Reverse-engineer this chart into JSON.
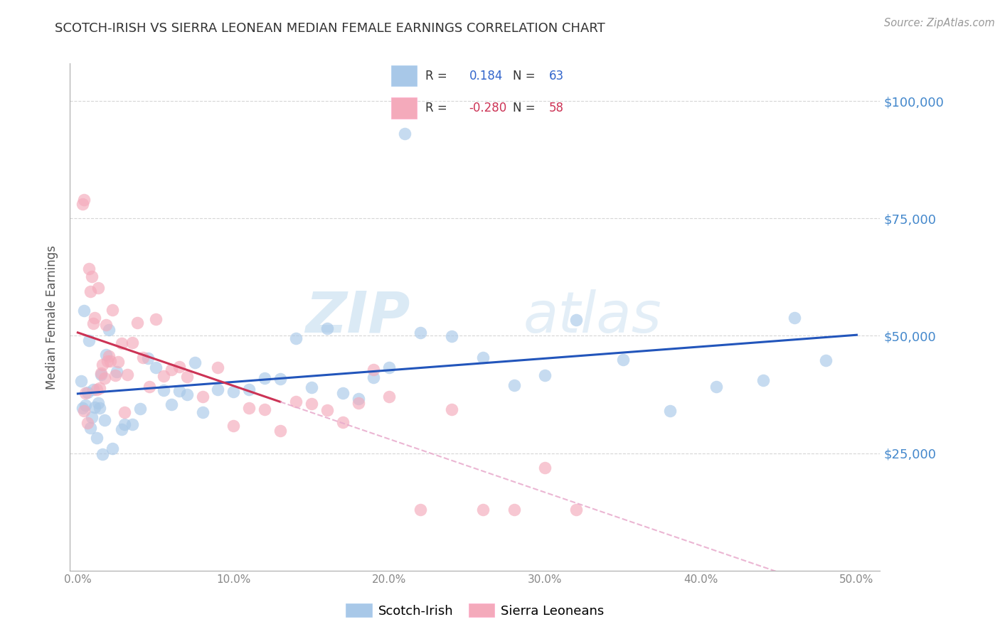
{
  "title": "SCOTCH-IRISH VS SIERRA LEONEAN MEDIAN FEMALE EARNINGS CORRELATION CHART",
  "source": "Source: ZipAtlas.com",
  "ylabel": "Median Female Earnings",
  "R1": "0.184",
  "N1": "63",
  "R2": "-0.280",
  "N2": "58",
  "blue_scatter": "#A8C8E8",
  "pink_scatter": "#F4AABB",
  "line_blue": "#2255BB",
  "line_pink": "#CC3355",
  "line_pink_dashed_color": "#E8AACC",
  "legend1_label": "Scotch-Irish",
  "legend2_label": "Sierra Leoneans",
  "ytick_labels": [
    "$25,000",
    "$50,000",
    "$75,000",
    "$100,000"
  ],
  "ytick_vals": [
    25000,
    50000,
    75000,
    100000
  ],
  "xtick_labels": [
    "0.0%",
    "10.0%",
    "20.0%",
    "30.0%",
    "40.0%",
    "50.0%"
  ],
  "xtick_vals": [
    0.0,
    0.1,
    0.2,
    0.3,
    0.4,
    0.5
  ],
  "xlim": [
    -0.005,
    0.515
  ],
  "ylim": [
    0,
    108000
  ],
  "grid_color": "#CCCCCC",
  "axis_color": "#AAAAAA",
  "title_color": "#333333",
  "source_color": "#999999",
  "ylabel_color": "#555555",
  "tick_color": "#888888",
  "right_tick_color": "#4488CC",
  "legend_R_color_blue": "#3366CC",
  "legend_R_color_pink": "#CC3355",
  "watermark_color": "#D8E8F4"
}
